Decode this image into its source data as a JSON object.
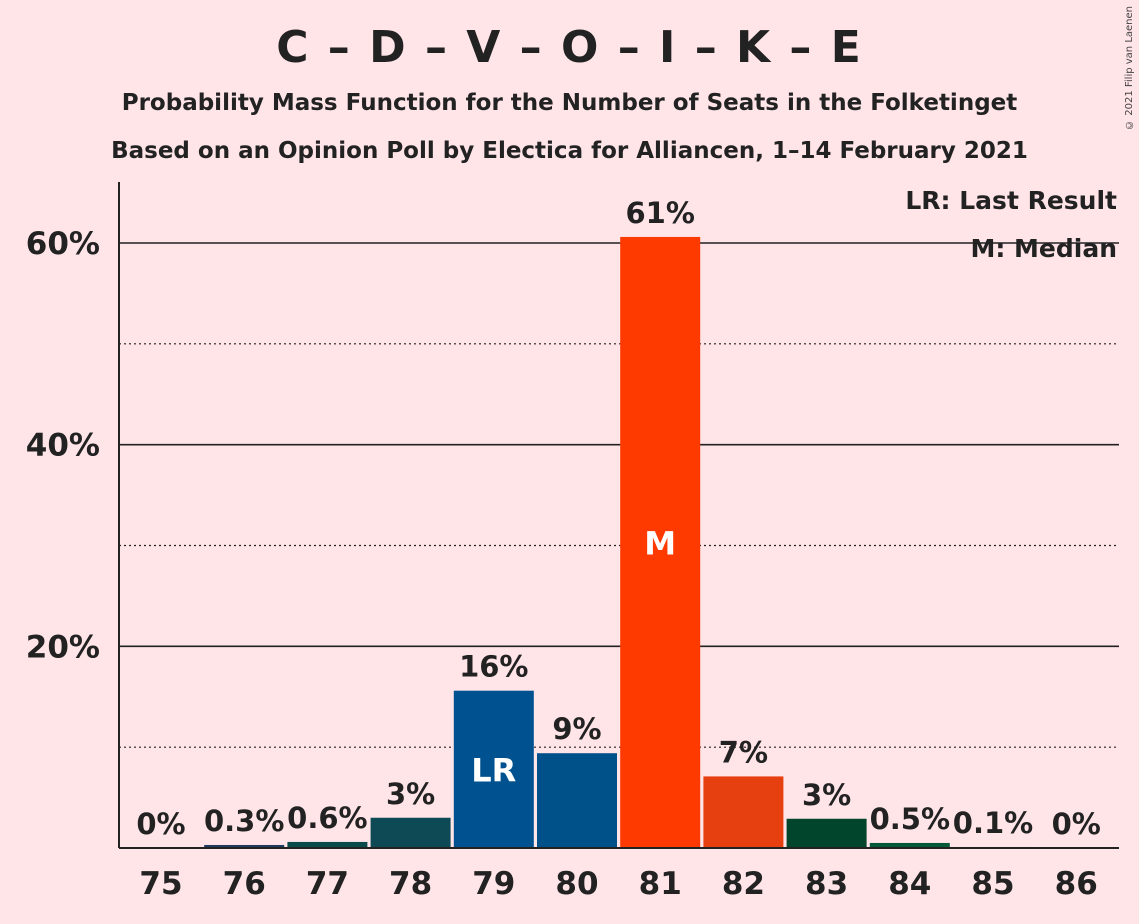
{
  "chart_data": {
    "type": "bar",
    "title": "C – D – V – O – I – K – E",
    "subtitle": "Probability Mass Function for the Number of Seats in the Folketinget",
    "subtitle2": "Based on an Opinion Poll by Electica for Alliancen, 1–14 February 2021",
    "copyright": "© 2021 Filip van Laenen",
    "categories": [
      "75",
      "76",
      "77",
      "78",
      "79",
      "80",
      "81",
      "82",
      "83",
      "84",
      "85",
      "86"
    ],
    "values": [
      0,
      0.3,
      0.6,
      3,
      15.6,
      9.4,
      60.6,
      7.1,
      2.9,
      0.5,
      0.1,
      0
    ],
    "data_labels": [
      "0%",
      "0.3%",
      "0.6%",
      "3%",
      "16%",
      "9%",
      "61%",
      "7%",
      "3%",
      "0.5%",
      "0.1%",
      "0%"
    ],
    "bar_colors": [
      "#1F3A5F",
      "#1F3A5F",
      "#0B4A4A",
      "#0E4A56",
      "#005190",
      "#00508A",
      "#FF3A00",
      "#E64010",
      "#00452C",
      "#005A3A",
      "#1F3A5F",
      "#1F3A5F"
    ],
    "ylim": [
      0,
      66
    ],
    "yticks_major": [
      20,
      40,
      60
    ],
    "yticks_minor": [
      10,
      30,
      50
    ],
    "ytick_labels": [
      "20%",
      "40%",
      "60%"
    ],
    "last_result": {
      "category": "79",
      "marker": "LR"
    },
    "median": {
      "category": "81",
      "marker": "M"
    },
    "legend": [
      "LR: Last Result",
      "M: Median"
    ],
    "legend_position": "top-right",
    "grid": true
  }
}
